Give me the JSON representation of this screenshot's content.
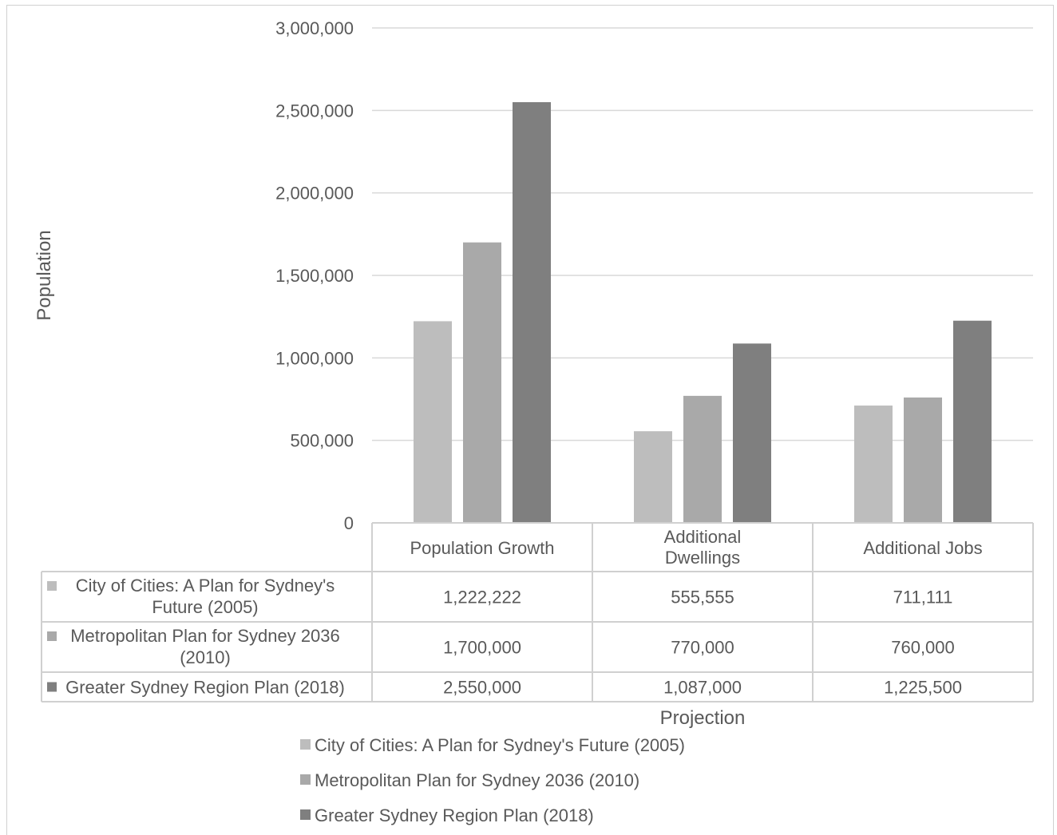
{
  "chart_data": {
    "type": "bar",
    "title": "",
    "xlabel": "Projection",
    "ylabel": "Population",
    "ylim": [
      0,
      3000000
    ],
    "yticks": [
      "0",
      "500,000",
      "1,000,000",
      "1,500,000",
      "2,000,000",
      "2,500,000",
      "3,000,000"
    ],
    "ytick_values": [
      0,
      500000,
      1000000,
      1500000,
      2000000,
      2500000,
      3000000
    ],
    "grid": true,
    "categories": [
      "Population Growth",
      "Additional Dwellings",
      "Additional Jobs"
    ],
    "series": [
      {
        "name": "City of Cities: A Plan for Sydney's Future (2005)",
        "values": [
          1222222,
          555555,
          711111
        ],
        "display": [
          "1,222,222",
          "555,555",
          "711,111"
        ],
        "color": "#bdbdbd"
      },
      {
        "name": "Metropolitan Plan for Sydney 2036 (2010)",
        "values": [
          1700000,
          770000,
          760000
        ],
        "display": [
          "1,700,000",
          "770,000",
          "760,000"
        ],
        "color": "#a9a9a9"
      },
      {
        "name": "Greater Sydney Region Plan (2018)",
        "values": [
          2550000,
          1087000,
          1225500
        ],
        "display": [
          "2,550,000",
          "1,087,000",
          "1,225,500"
        ],
        "color": "#7f7f7f"
      }
    ],
    "data_table": true,
    "legend_position": "bottom"
  }
}
